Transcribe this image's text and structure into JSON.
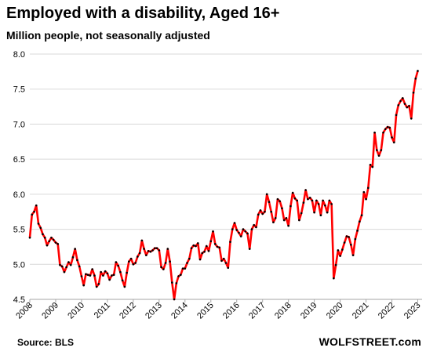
{
  "chart_data": {
    "type": "line",
    "title": "Employed with a disability, Aged 16+",
    "subtitle": "Million people, not seasonally adjusted",
    "xlabel": "",
    "ylabel": "",
    "ylim": [
      4.5,
      8.0
    ],
    "yticks": [
      "4.5",
      "5.0",
      "5.5",
      "6.0",
      "6.5",
      "7.0",
      "7.5",
      "8.0"
    ],
    "xticks": [
      "2008",
      "2009",
      "2010",
      "2011",
      "2012",
      "2013",
      "2014",
      "2015",
      "2016",
      "2017",
      "2018",
      "2019",
      "2020",
      "2021",
      "2022",
      "2023"
    ],
    "x_start": "2008-01",
    "x_end": "2023-02",
    "grid": "horizontal",
    "line_color": "#ff0000",
    "marker_color": "#000000",
    "series": [
      {
        "values": [
          5.38,
          5.71,
          5.75,
          5.84,
          5.58,
          5.52,
          5.43,
          5.38,
          5.27,
          5.33,
          5.38,
          5.35,
          5.31,
          5.29,
          4.99,
          4.97,
          4.89,
          4.96,
          5.03,
          4.99,
          5.1,
          5.22,
          5.06,
          4.97,
          4.83,
          4.7,
          4.86,
          4.85,
          4.84,
          4.93,
          4.84,
          4.68,
          4.72,
          4.89,
          4.84,
          4.9,
          4.87,
          4.78,
          4.84,
          4.85,
          5.03,
          4.98,
          4.89,
          4.77,
          4.68,
          4.88,
          5.04,
          5.08,
          5.0,
          5.02,
          5.11,
          5.16,
          5.34,
          5.22,
          5.13,
          5.19,
          5.18,
          5.2,
          5.23,
          5.23,
          5.2,
          4.96,
          4.93,
          5.02,
          5.22,
          5.04,
          4.74,
          4.5,
          4.73,
          4.83,
          4.85,
          4.94,
          4.94,
          5.02,
          5.08,
          5.23,
          5.27,
          5.26,
          5.3,
          5.07,
          5.16,
          5.18,
          5.26,
          5.19,
          5.33,
          5.47,
          5.29,
          5.25,
          5.24,
          5.05,
          5.08,
          5.02,
          4.95,
          5.32,
          5.5,
          5.59,
          5.49,
          5.45,
          5.4,
          5.5,
          5.47,
          5.44,
          5.22,
          5.5,
          5.56,
          5.53,
          5.71,
          5.77,
          5.72,
          5.75,
          6.0,
          5.89,
          5.75,
          5.6,
          5.66,
          5.93,
          5.9,
          5.8,
          5.63,
          5.66,
          5.55,
          5.83,
          6.02,
          5.94,
          5.91,
          5.63,
          5.73,
          5.88,
          6.06,
          5.93,
          5.95,
          5.91,
          5.74,
          5.91,
          5.86,
          5.7,
          5.91,
          5.84,
          5.74,
          5.91,
          5.86,
          4.8,
          4.99,
          5.2,
          5.12,
          5.21,
          5.31,
          5.4,
          5.39,
          5.28,
          5.13,
          5.36,
          5.48,
          5.61,
          5.7,
          6.03,
          5.93,
          6.09,
          6.42,
          6.39,
          6.88,
          6.63,
          6.55,
          6.63,
          6.88,
          6.93,
          6.96,
          6.95,
          6.81,
          6.74,
          7.13,
          7.27,
          7.33,
          7.37,
          7.29,
          7.24,
          7.26,
          7.08,
          7.45,
          7.65,
          7.76
        ]
      }
    ]
  },
  "footer": {
    "source": "Source: BLS",
    "brand": "WOLFSTREET.com"
  }
}
